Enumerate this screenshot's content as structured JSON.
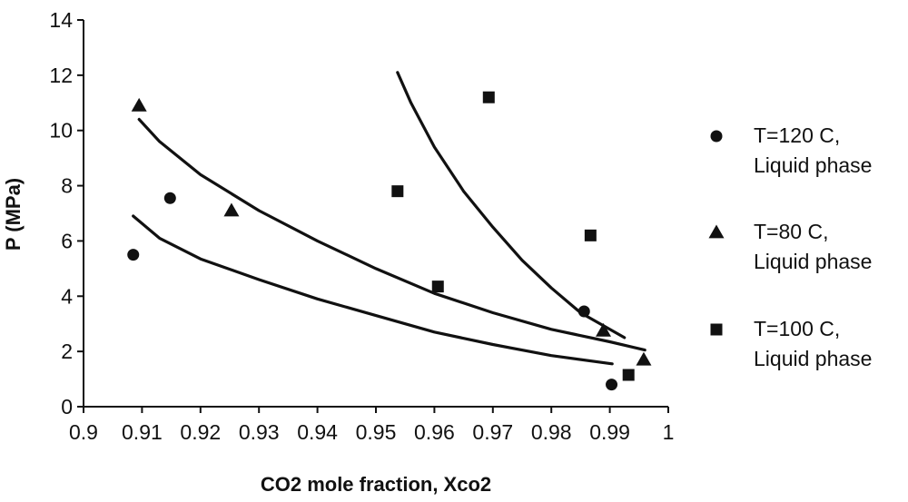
{
  "chart_data": {
    "type": "scatter",
    "title": "",
    "xlabel": "CO2 mole fraction, Xco2",
    "ylabel": "P (MPa)",
    "xlim": [
      0.9,
      1.0
    ],
    "ylim": [
      0,
      14
    ],
    "xticks": [
      0.9,
      0.91,
      0.92,
      0.93,
      0.94,
      0.95,
      0.96,
      0.97,
      0.98,
      0.99,
      1.0
    ],
    "xtick_labels": [
      "0.9",
      "0.91",
      "0.92",
      "0.93",
      "0.94",
      "0.95",
      "0.96",
      "0.97",
      "0.98",
      "0.99",
      "1"
    ],
    "yticks": [
      0,
      2,
      4,
      6,
      8,
      10,
      12,
      14
    ],
    "ytick_labels": [
      "0",
      "2",
      "4",
      "6",
      "8",
      "10",
      "12",
      "14"
    ],
    "grid": false,
    "legend_position": "right",
    "series": [
      {
        "name": "T=120 C, Liquid phase",
        "legend_lines": [
          "T=120 C,",
          "Liquid phase"
        ],
        "marker": "circle",
        "points": [
          [
            0.9085,
            5.5
          ],
          [
            0.9148,
            7.55
          ],
          [
            0.9856,
            3.45
          ],
          [
            0.9903,
            0.8
          ]
        ],
        "fit_curve": [
          [
            0.9085,
            6.9
          ],
          [
            0.913,
            6.1
          ],
          [
            0.92,
            5.35
          ],
          [
            0.93,
            4.6
          ],
          [
            0.94,
            3.9
          ],
          [
            0.95,
            3.3
          ],
          [
            0.96,
            2.7
          ],
          [
            0.97,
            2.25
          ],
          [
            0.98,
            1.85
          ],
          [
            0.9904,
            1.55
          ]
        ]
      },
      {
        "name": "T=80 C, Liquid phase",
        "legend_lines": [
          "T=80 C,",
          "Liquid phase"
        ],
        "marker": "triangle",
        "points": [
          [
            0.9095,
            10.9
          ],
          [
            0.9253,
            7.1
          ],
          [
            0.9889,
            2.75
          ],
          [
            0.9958,
            1.7
          ]
        ],
        "fit_curve": [
          [
            0.9095,
            10.4
          ],
          [
            0.913,
            9.6
          ],
          [
            0.92,
            8.4
          ],
          [
            0.93,
            7.1
          ],
          [
            0.94,
            6.0
          ],
          [
            0.95,
            5.0
          ],
          [
            0.96,
            4.1
          ],
          [
            0.97,
            3.4
          ],
          [
            0.98,
            2.8
          ],
          [
            0.99,
            2.35
          ],
          [
            0.996,
            2.05
          ]
        ]
      },
      {
        "name": "T=100 C, Liquid phase",
        "legend_lines": [
          "T=100 C,",
          "Liquid phase"
        ],
        "marker": "square",
        "points": [
          [
            0.9537,
            7.8
          ],
          [
            0.9606,
            4.35
          ],
          [
            0.9693,
            11.2
          ],
          [
            0.9867,
            6.2
          ],
          [
            0.9932,
            1.15
          ]
        ],
        "fit_curve": [
          [
            0.9537,
            12.1
          ],
          [
            0.956,
            11.0
          ],
          [
            0.96,
            9.4
          ],
          [
            0.965,
            7.8
          ],
          [
            0.97,
            6.5
          ],
          [
            0.975,
            5.3
          ],
          [
            0.98,
            4.3
          ],
          [
            0.985,
            3.4
          ],
          [
            0.9925,
            2.5
          ]
        ]
      }
    ]
  }
}
